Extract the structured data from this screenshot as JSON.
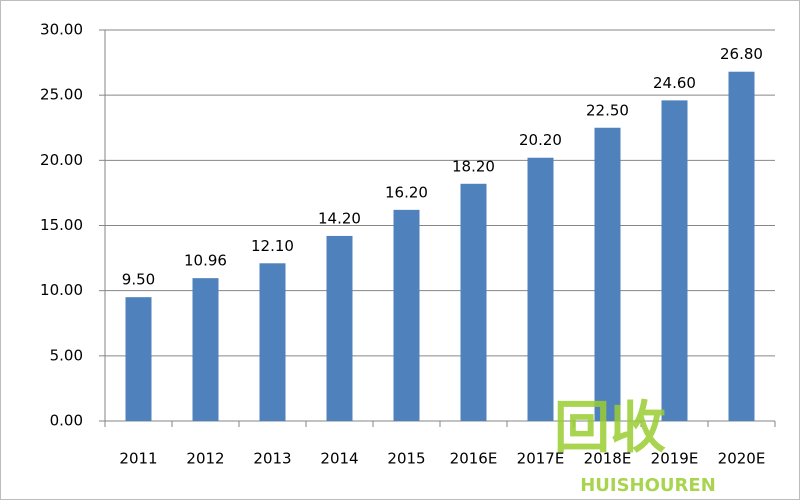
{
  "chart_data": {
    "type": "bar",
    "categories": [
      "2011",
      "2012",
      "2013",
      "2014",
      "2015",
      "2016E",
      "2017E",
      "2018E",
      "2019E",
      "2020E"
    ],
    "values": [
      9.5,
      10.96,
      12.1,
      14.2,
      16.2,
      18.2,
      20.2,
      22.5,
      24.6,
      26.8
    ],
    "value_labels": [
      "9.50",
      "10.96",
      "12.10",
      "14.20",
      "16.20",
      "18.20",
      "20.20",
      "22.50",
      "24.60",
      "26.80"
    ],
    "color": "#4f81bd",
    "ylim": [
      0,
      30
    ],
    "yticks": [
      {
        "value": 0,
        "label": "0.00"
      },
      {
        "value": 5,
        "label": "5.00"
      },
      {
        "value": 10,
        "label": "10.00"
      },
      {
        "value": 15,
        "label": "15.00"
      },
      {
        "value": 20,
        "label": "20.00"
      },
      {
        "value": 25,
        "label": "25.00"
      },
      {
        "value": 30,
        "label": "30.00"
      }
    ],
    "grid": true
  },
  "watermark": {
    "text": "回收",
    "subtext": "HUISHOUREN"
  }
}
